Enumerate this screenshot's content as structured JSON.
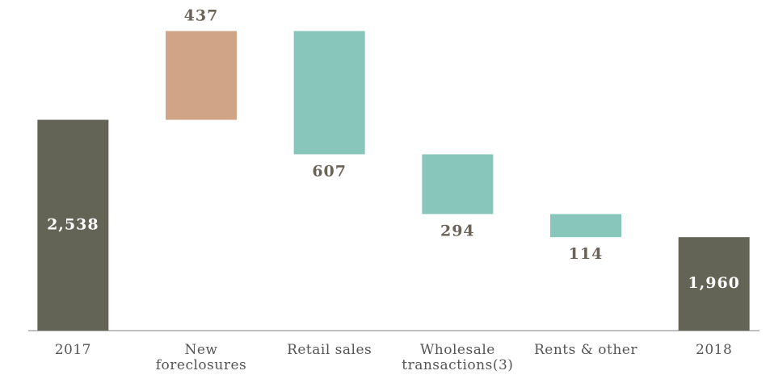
{
  "chart_data": {
    "type": "waterfall",
    "categories": [
      "2017",
      "New foreclosures",
      "Retail sales",
      "Wholesale transactions(3)",
      "Rents & other",
      "2018"
    ],
    "values": [
      2538,
      437,
      607,
      294,
      114,
      1960
    ],
    "value_labels": [
      "2,538",
      "437",
      "607",
      "294",
      "114",
      "1,960"
    ],
    "measures": [
      "total",
      "increase",
      "decrease",
      "decrease",
      "decrease",
      "total"
    ],
    "colors": {
      "total": "#636356",
      "increase": "#cfa487",
      "decrease": "#88c6bb"
    },
    "ylim": [
      1500,
      3100
    ]
  }
}
